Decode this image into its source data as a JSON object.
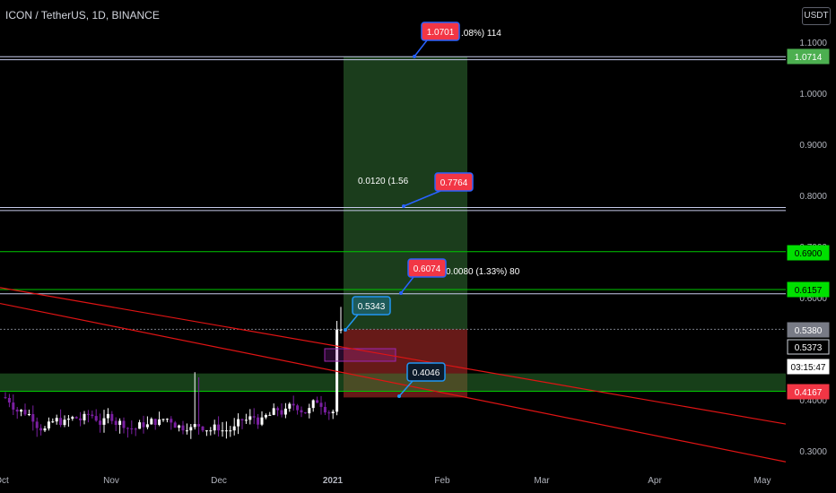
{
  "header": {
    "symbol_title": "ICON / TetherUS, 1D, BINANCE",
    "currency": "USDT"
  },
  "chart_data": {
    "type": "candlestick",
    "ylim": [
      0.275,
      1.12
    ],
    "y_ticks": [
      "1.1000",
      "1.0000",
      "0.9000",
      "0.8000",
      "0.7000",
      "0.6000",
      "0.5000",
      "0.4000",
      "0.3000"
    ],
    "y_tick_values": [
      1.1,
      1.0,
      0.9,
      0.8,
      0.7,
      0.6,
      0.5,
      0.4,
      0.3
    ],
    "x_ticks": [
      "Oct",
      "Nov",
      "Dec",
      "2021",
      "Feb",
      "Mar",
      "Apr",
      "May"
    ],
    "price_levels": [
      {
        "label": "1.0714",
        "value": 1.0714,
        "color": "#4caf50"
      },
      {
        "label": "0.6900",
        "value": 0.69,
        "color": "#00e000"
      },
      {
        "label": "0.6157",
        "value": 0.6157,
        "color": "#00e000"
      },
      {
        "label": "0.5380",
        "value": 0.538,
        "color": "#787b86"
      },
      {
        "label": "0.5373",
        "value": 0.5373,
        "color": "#000000"
      },
      {
        "label": "03:15:47",
        "value": 0.49,
        "color": "#000000"
      },
      {
        "label": "0.4167",
        "value": 0.4167,
        "color": "#f23645"
      }
    ],
    "horizontal_lines": [
      {
        "value": 1.0714,
        "color": "#c5cae9"
      },
      {
        "value": 1.0655,
        "color": "#c5cae9"
      },
      {
        "value": 0.7764,
        "color": "#c5cae9"
      },
      {
        "value": 0.7705,
        "color": "#c5cae9"
      },
      {
        "value": 0.69,
        "color": "#00c800"
      },
      {
        "value": 0.6157,
        "color": "#00c800"
      },
      {
        "value": 0.6074,
        "color": "#c5cae9"
      },
      {
        "value": 0.538,
        "color": "#787b86"
      },
      {
        "value": 0.4167,
        "color": "#00c800"
      }
    ],
    "support_zone": {
      "from": 0.4167,
      "to": 0.4515
    },
    "position": {
      "profit_zone": {
        "from": 0.538,
        "to": 1.0714
      },
      "loss_zone": {
        "from": 0.4046,
        "to": 0.538
      }
    },
    "callouts": [
      {
        "text": "1.0701",
        "style": "red",
        "value": 1.0701
      },
      {
        "text": "0.7764",
        "style": "red",
        "value": 0.7764
      },
      {
        "text": "0.6074",
        "style": "red",
        "value": 0.6074
      },
      {
        "text": "0.5343",
        "style": "teal",
        "value": 0.5343
      },
      {
        "text": "0.4046",
        "style": "dark",
        "value": 0.4046
      }
    ],
    "annotations": [
      {
        "text": ".08%) 114",
        "value": 1.0714
      },
      {
        "text": "0.0120 (1.56",
        "value": 0.7764
      },
      {
        "text": "0.0080 (1.33%) 80",
        "value": 0.6074
      }
    ],
    "trendlines": [
      {
        "from_value": 0.6195,
        "to_value": 0.3525,
        "color": "#e01414"
      },
      {
        "from_value": 0.5885,
        "to_value": 0.2785,
        "color": "#e01414"
      }
    ]
  }
}
